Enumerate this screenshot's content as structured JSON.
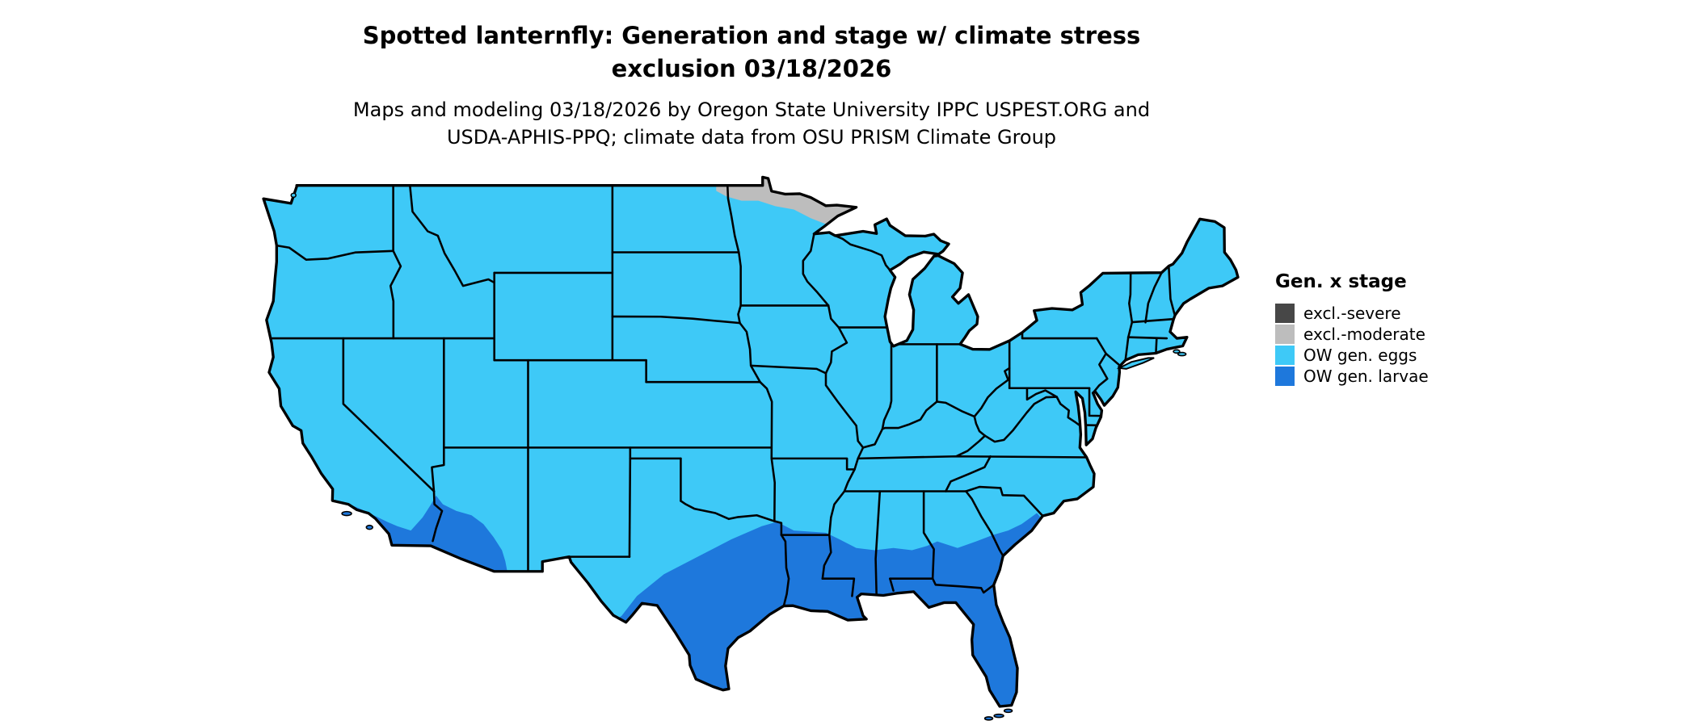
{
  "header": {
    "title_line1": "Spotted lanternfly: Generation and stage w/ climate stress",
    "title_line2": "exclusion 03/18/2026",
    "subtitle_line1": "Maps and modeling 03/18/2026 by Oregon State University IPPC USPEST.ORG and",
    "subtitle_line2": "USDA-APHIS-PPQ; climate data from OSU PRISM Climate Group"
  },
  "legend": {
    "title": "Gen. x stage",
    "items": [
      {
        "label": "excl.-severe",
        "color": "#474747"
      },
      {
        "label": "excl.-moderate",
        "color": "#bdbdbd"
      },
      {
        "label": "OW gen. eggs",
        "color": "#3ec9f7"
      },
      {
        "label": "OW gen. larvae",
        "color": "#1e78dc"
      }
    ]
  },
  "map": {
    "background_color": "#ffffff",
    "boundary_color": "#000000"
  }
}
